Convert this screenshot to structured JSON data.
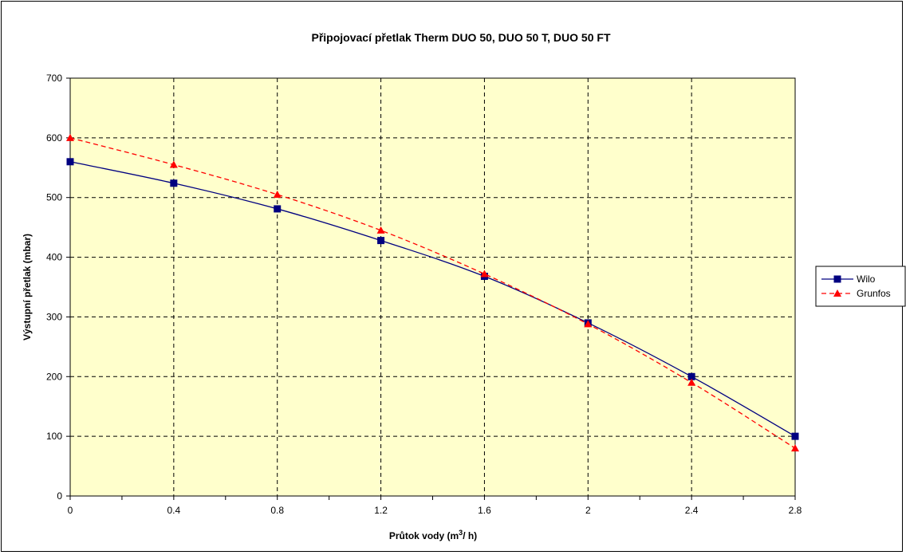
{
  "chart_data": {
    "type": "line",
    "title": "Připojovací přetlak Therm DUO 50, DUO 50 T, DUO 50 FT",
    "xlabel": {
      "prefix": "Průtok vody (m",
      "sup": "3",
      "suffix": "/ h)"
    },
    "ylabel": "Výstupní přetlak (mbar)",
    "x": [
      0,
      0.4,
      0.8,
      1.2,
      1.6,
      2,
      2.4,
      2.8
    ],
    "x_ticks": [
      "0",
      "0.4",
      "0.8",
      "1.2",
      "1.6",
      "2",
      "2.4",
      "2.8"
    ],
    "xlim": [
      0,
      2.8
    ],
    "ylim": [
      0,
      700
    ],
    "y_ticks": [
      "0",
      "100",
      "200",
      "300",
      "400",
      "500",
      "600",
      "700"
    ],
    "grid": true,
    "legend_position": "right",
    "plot_background": "#ffffcc",
    "series": [
      {
        "name": "Wilo",
        "values": [
          560,
          524,
          481,
          428,
          368,
          290,
          200,
          100
        ],
        "color": "#000080",
        "marker": "square",
        "line": "solid"
      },
      {
        "name": "Grunfos",
        "values": [
          600,
          555,
          505,
          445,
          372,
          288,
          190,
          80
        ],
        "color": "#ff0000",
        "marker": "triangle",
        "line": "dashed"
      }
    ]
  }
}
